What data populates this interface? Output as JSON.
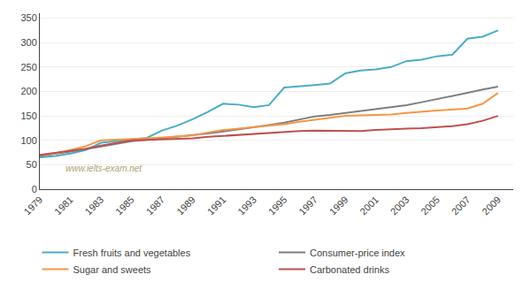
{
  "chart_data": {
    "type": "line",
    "x": [
      1979,
      1980,
      1981,
      1982,
      1983,
      1984,
      1985,
      1986,
      1987,
      1988,
      1989,
      1990,
      1991,
      1992,
      1993,
      1994,
      1995,
      1996,
      1997,
      1998,
      1999,
      2000,
      2001,
      2002,
      2003,
      2004,
      2005,
      2006,
      2007,
      2008,
      2009
    ],
    "series": [
      {
        "name": "Fresh fruits and vegetables",
        "color": "#4bacc6",
        "values": [
          65,
          68,
          73,
          80,
          95,
          98,
          102,
          105,
          120,
          130,
          143,
          158,
          175,
          173,
          168,
          172,
          208,
          210,
          213,
          216,
          237,
          243,
          245,
          250,
          262,
          265,
          272,
          275,
          308,
          312,
          325
        ]
      },
      {
        "name": "Consumer-price index",
        "color": "#7f7f7f",
        "values": [
          68,
          72,
          77,
          82,
          87,
          92,
          98,
          101,
          104,
          107,
          110,
          114,
          118,
          122,
          126,
          131,
          136,
          143,
          149,
          152,
          156,
          159,
          163,
          167,
          172,
          178,
          184,
          190,
          197,
          204,
          210
        ]
      },
      {
        "name": "Sugar and sweets",
        "color": "#f79646",
        "values": [
          70,
          73,
          80,
          88,
          100,
          101,
          103,
          104,
          106,
          108,
          110,
          116,
          121,
          124,
          127,
          129,
          133,
          138,
          142,
          146,
          150,
          151,
          152,
          153,
          156,
          159,
          161,
          163,
          165,
          175,
          197
        ]
      },
      {
        "name": "Carbonated drinks",
        "color": "#c0504d",
        "values": [
          70,
          74,
          78,
          83,
          89,
          94,
          100,
          101,
          102,
          103,
          104,
          107,
          109,
          112,
          114,
          116,
          118,
          119,
          120,
          120,
          120,
          119,
          121,
          123,
          124,
          125,
          127,
          129,
          133,
          140,
          150
        ]
      }
    ],
    "xlim": [
      1979,
      2010
    ],
    "xticks": [
      1979,
      1981,
      1983,
      1985,
      1987,
      1989,
      1991,
      1993,
      1995,
      1997,
      1999,
      2001,
      2003,
      2005,
      2007,
      2009
    ],
    "ylim": [
      0,
      360
    ],
    "yticks": [
      0,
      50,
      100,
      150,
      200,
      250,
      300,
      350
    ],
    "grid": true,
    "legend": "bottom",
    "annotations": [
      "www.ielts-exam.net"
    ]
  }
}
